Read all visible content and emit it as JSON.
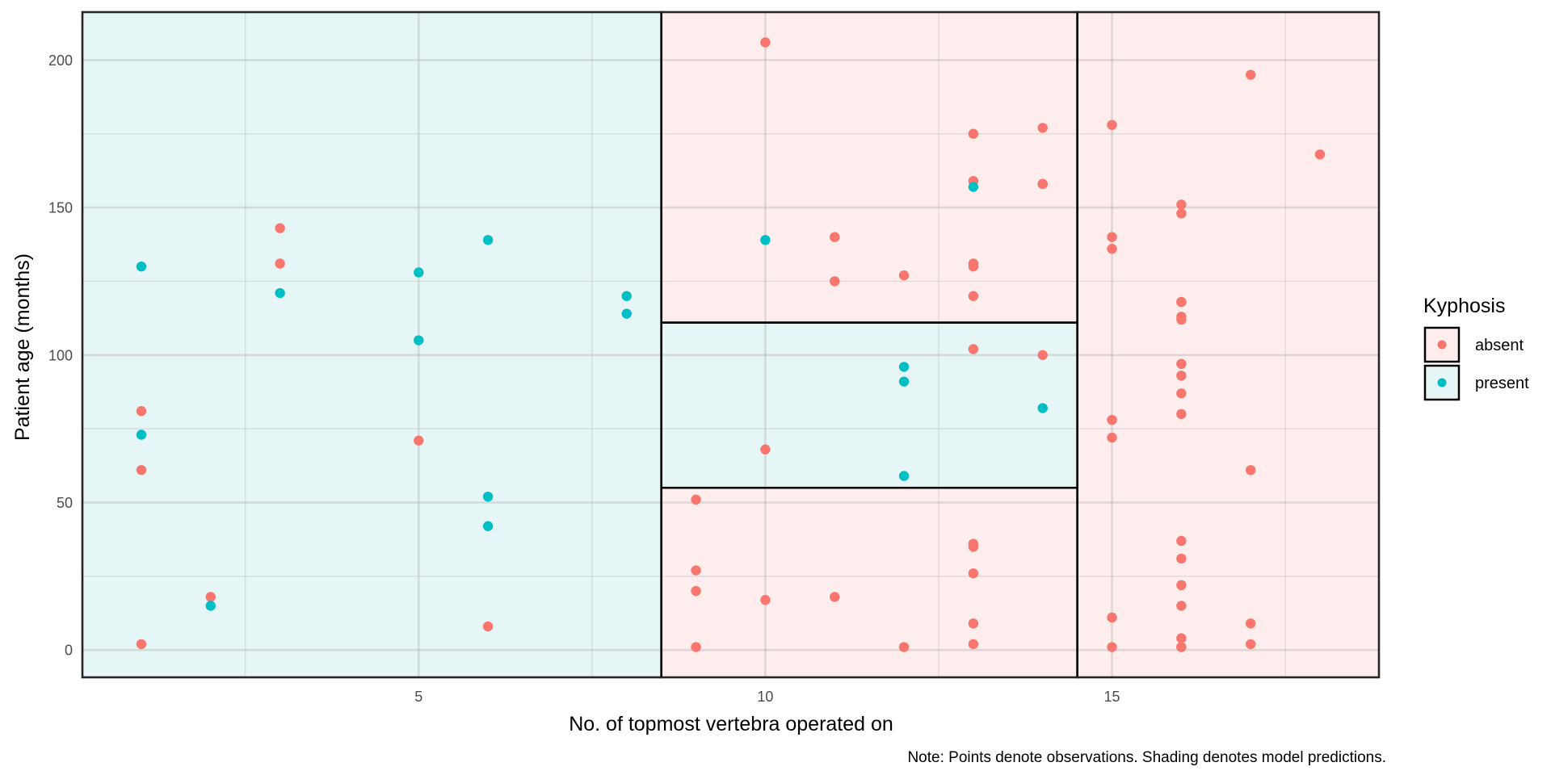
{
  "chart_data": {
    "type": "scatter",
    "title": "",
    "xlabel": "No. of topmost vertebra operated on",
    "ylabel": "Patient age (months)",
    "caption": "Note: Points denote observations. Shading denotes model predictions.",
    "xlim": [
      0.15,
      18.85
    ],
    "ylim": [
      -9.25,
      216.25
    ],
    "x_ticks": [
      5,
      10,
      15
    ],
    "x_minor": [
      2.5,
      7.5,
      12.5,
      17.5
    ],
    "y_ticks": [
      0,
      50,
      100,
      150,
      200
    ],
    "y_minor": [
      25,
      75,
      125,
      175
    ],
    "grid": true,
    "legend": {
      "title": "Kyphosis",
      "position": "right",
      "entries": [
        {
          "label": "absent",
          "color": "#F8766D",
          "fill": "#FDECEC"
        },
        {
          "label": "present",
          "color": "#00BFC4",
          "fill": "#E6F6F6"
        }
      ]
    },
    "colors": {
      "absent": "#F8766D",
      "present": "#00BFC4",
      "absent_fill": "#FEEDED",
      "present_fill": "#E6F6F6"
    },
    "regions": [
      {
        "x": [
          0.15,
          8.5
        ],
        "y": [
          -9.25,
          216.25
        ],
        "prediction": "present"
      },
      {
        "x": [
          8.5,
          14.5
        ],
        "y": [
          111,
          216.25
        ],
        "prediction": "absent"
      },
      {
        "x": [
          8.5,
          14.5
        ],
        "y": [
          55,
          111
        ],
        "prediction": "present"
      },
      {
        "x": [
          8.5,
          14.5
        ],
        "y": [
          -9.25,
          55
        ],
        "prediction": "absent"
      },
      {
        "x": [
          14.5,
          18.85
        ],
        "y": [
          -9.25,
          216.25
        ],
        "prediction": "absent"
      }
    ],
    "series": [
      {
        "name": "absent",
        "points": [
          [
            5,
            71
          ],
          [
            14,
            158
          ],
          [
            1,
            2
          ],
          [
            15,
            1
          ],
          [
            16,
            1
          ],
          [
            17,
            61
          ],
          [
            16,
            37
          ],
          [
            16,
            113
          ],
          [
            16,
            148
          ],
          [
            2,
            18
          ],
          [
            12,
            1
          ],
          [
            18,
            168
          ],
          [
            16,
            1
          ],
          [
            15,
            78
          ],
          [
            13,
            175
          ],
          [
            16,
            80
          ],
          [
            9,
            27
          ],
          [
            16,
            22
          ],
          [
            3,
            131
          ],
          [
            13,
            9
          ],
          [
            6,
            8
          ],
          [
            14,
            100
          ],
          [
            16,
            4
          ],
          [
            16,
            151
          ],
          [
            16,
            31
          ],
          [
            11,
            125
          ],
          [
            13,
            130
          ],
          [
            16,
            112
          ],
          [
            11,
            140
          ],
          [
            16,
            93
          ],
          [
            9,
            1
          ],
          [
            9,
            20
          ],
          [
            13,
            35
          ],
          [
            3,
            143
          ],
          [
            1,
            61
          ],
          [
            16,
            97
          ],
          [
            15,
            136
          ],
          [
            13,
            131
          ],
          [
            14,
            177
          ],
          [
            10,
            68
          ],
          [
            17,
            9
          ],
          [
            17,
            2
          ],
          [
            15,
            140
          ],
          [
            15,
            72
          ],
          [
            13,
            2
          ],
          [
            9,
            51
          ],
          [
            13,
            102
          ],
          [
            1,
            81
          ],
          [
            16,
            118
          ],
          [
            16,
            118
          ],
          [
            10,
            17
          ],
          [
            17,
            195
          ],
          [
            13,
            159
          ],
          [
            11,
            18
          ],
          [
            16,
            15
          ],
          [
            14,
            158
          ],
          [
            12,
            127
          ],
          [
            16,
            87
          ],
          [
            10,
            206
          ],
          [
            15,
            11
          ],
          [
            15,
            178
          ],
          [
            13,
            26
          ],
          [
            13,
            120
          ],
          [
            13,
            36
          ]
        ]
      },
      {
        "name": "present",
        "points": [
          [
            5,
            128
          ],
          [
            12,
            59
          ],
          [
            14,
            82
          ],
          [
            5,
            105
          ],
          [
            12,
            96
          ],
          [
            2,
            15
          ],
          [
            6,
            52
          ],
          [
            12,
            91
          ],
          [
            1,
            73
          ],
          [
            10,
            139
          ],
          [
            3,
            121
          ],
          [
            6,
            139
          ],
          [
            8,
            120
          ],
          [
            1,
            130
          ],
          [
            8,
            114
          ],
          [
            13,
            157
          ],
          [
            6,
            42
          ]
        ]
      }
    ]
  }
}
